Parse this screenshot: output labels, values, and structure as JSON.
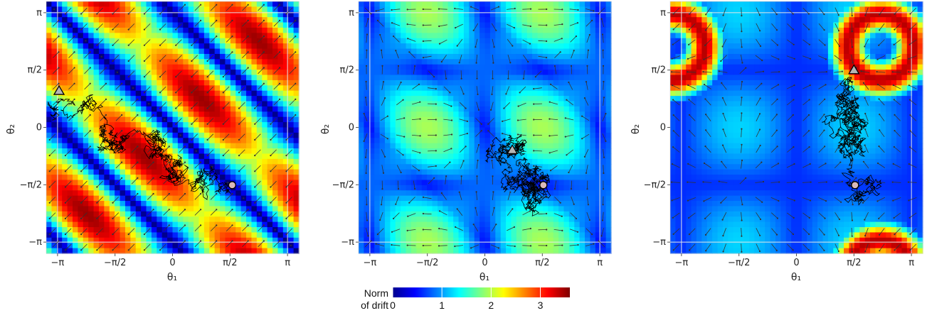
{
  "chart_data": [
    {
      "type": "heatmap",
      "title": "",
      "xlabel": "θ₁",
      "ylabel": "θ₂",
      "xlim": [
        -3.45,
        3.45
      ],
      "ylim": [
        -3.45,
        3.45
      ],
      "x_ticks": [
        {
          "v": -3.14159,
          "label": "−π"
        },
        {
          "v": -1.5708,
          "label": "−π/2"
        },
        {
          "v": 0,
          "label": "0"
        },
        {
          "v": 1.5708,
          "label": "π/2"
        },
        {
          "v": 3.14159,
          "label": "π"
        }
      ],
      "y_ticks": [
        {
          "v": -3.14159,
          "label": "−π"
        },
        {
          "v": -1.5708,
          "label": "−π/2"
        },
        {
          "v": 0,
          "label": "0"
        },
        {
          "v": 1.5708,
          "label": "π/2"
        },
        {
          "v": 3.14159,
          "label": "π"
        }
      ],
      "grid": true,
      "markers": [
        {
          "shape": "triangle",
          "theta1": -3.1,
          "theta2": 1.0
        },
        {
          "shape": "circle",
          "theta1": 1.63,
          "theta2": -1.58
        }
      ]
    },
    {
      "type": "heatmap",
      "title": "",
      "xlabel": "θ₁",
      "ylabel": "θ₂",
      "xlim": [
        -3.45,
        3.45
      ],
      "ylim": [
        -3.45,
        3.45
      ],
      "x_ticks": [
        {
          "v": -3.14159,
          "label": "−π"
        },
        {
          "v": -1.5708,
          "label": "−π/2"
        },
        {
          "v": 0,
          "label": "0"
        },
        {
          "v": 1.5708,
          "label": "π/2"
        },
        {
          "v": 3.14159,
          "label": "π"
        }
      ],
      "y_ticks": [
        {
          "v": -3.14159,
          "label": "−π"
        },
        {
          "v": -1.5708,
          "label": "−π/2"
        },
        {
          "v": 0,
          "label": "0"
        },
        {
          "v": 1.5708,
          "label": "π/2"
        },
        {
          "v": 3.14159,
          "label": "π"
        }
      ],
      "grid": true,
      "markers": [
        {
          "shape": "triangle",
          "theta1": 0.75,
          "theta2": -0.62
        },
        {
          "shape": "circle",
          "theta1": 1.6,
          "theta2": -1.58
        }
      ]
    },
    {
      "type": "heatmap",
      "title": "",
      "xlabel": "θ₁",
      "ylabel": "θ₂",
      "xlim": [
        -3.45,
        3.45
      ],
      "ylim": [
        -3.45,
        3.45
      ],
      "x_ticks": [
        {
          "v": -3.14159,
          "label": "−π"
        },
        {
          "v": -1.5708,
          "label": "−π/2"
        },
        {
          "v": 0,
          "label": "0"
        },
        {
          "v": 1.5708,
          "label": "π/2"
        },
        {
          "v": 3.14159,
          "label": "π"
        }
      ],
      "y_ticks": [
        {
          "v": -3.14159,
          "label": "−π"
        },
        {
          "v": -1.5708,
          "label": "−π/2"
        },
        {
          "v": 0,
          "label": "0"
        },
        {
          "v": 1.5708,
          "label": "π/2"
        },
        {
          "v": 3.14159,
          "label": "π"
        }
      ],
      "grid": true,
      "markers": [
        {
          "shape": "triangle",
          "theta1": 1.57,
          "theta2": 1.57
        },
        {
          "shape": "circle",
          "theta1": 1.6,
          "theta2": -1.58
        }
      ]
    }
  ],
  "legend": {
    "title_line1": "Norm",
    "title_line2": "of drift",
    "ticks": [
      "0",
      "1",
      "2",
      "3"
    ],
    "min": 0,
    "max": 3.6,
    "colormap": [
      "#00008f",
      "#0000ff",
      "#007fff",
      "#00ffff",
      "#7fff7f",
      "#ffff00",
      "#ff7f00",
      "#ff0000",
      "#7f0000"
    ]
  }
}
